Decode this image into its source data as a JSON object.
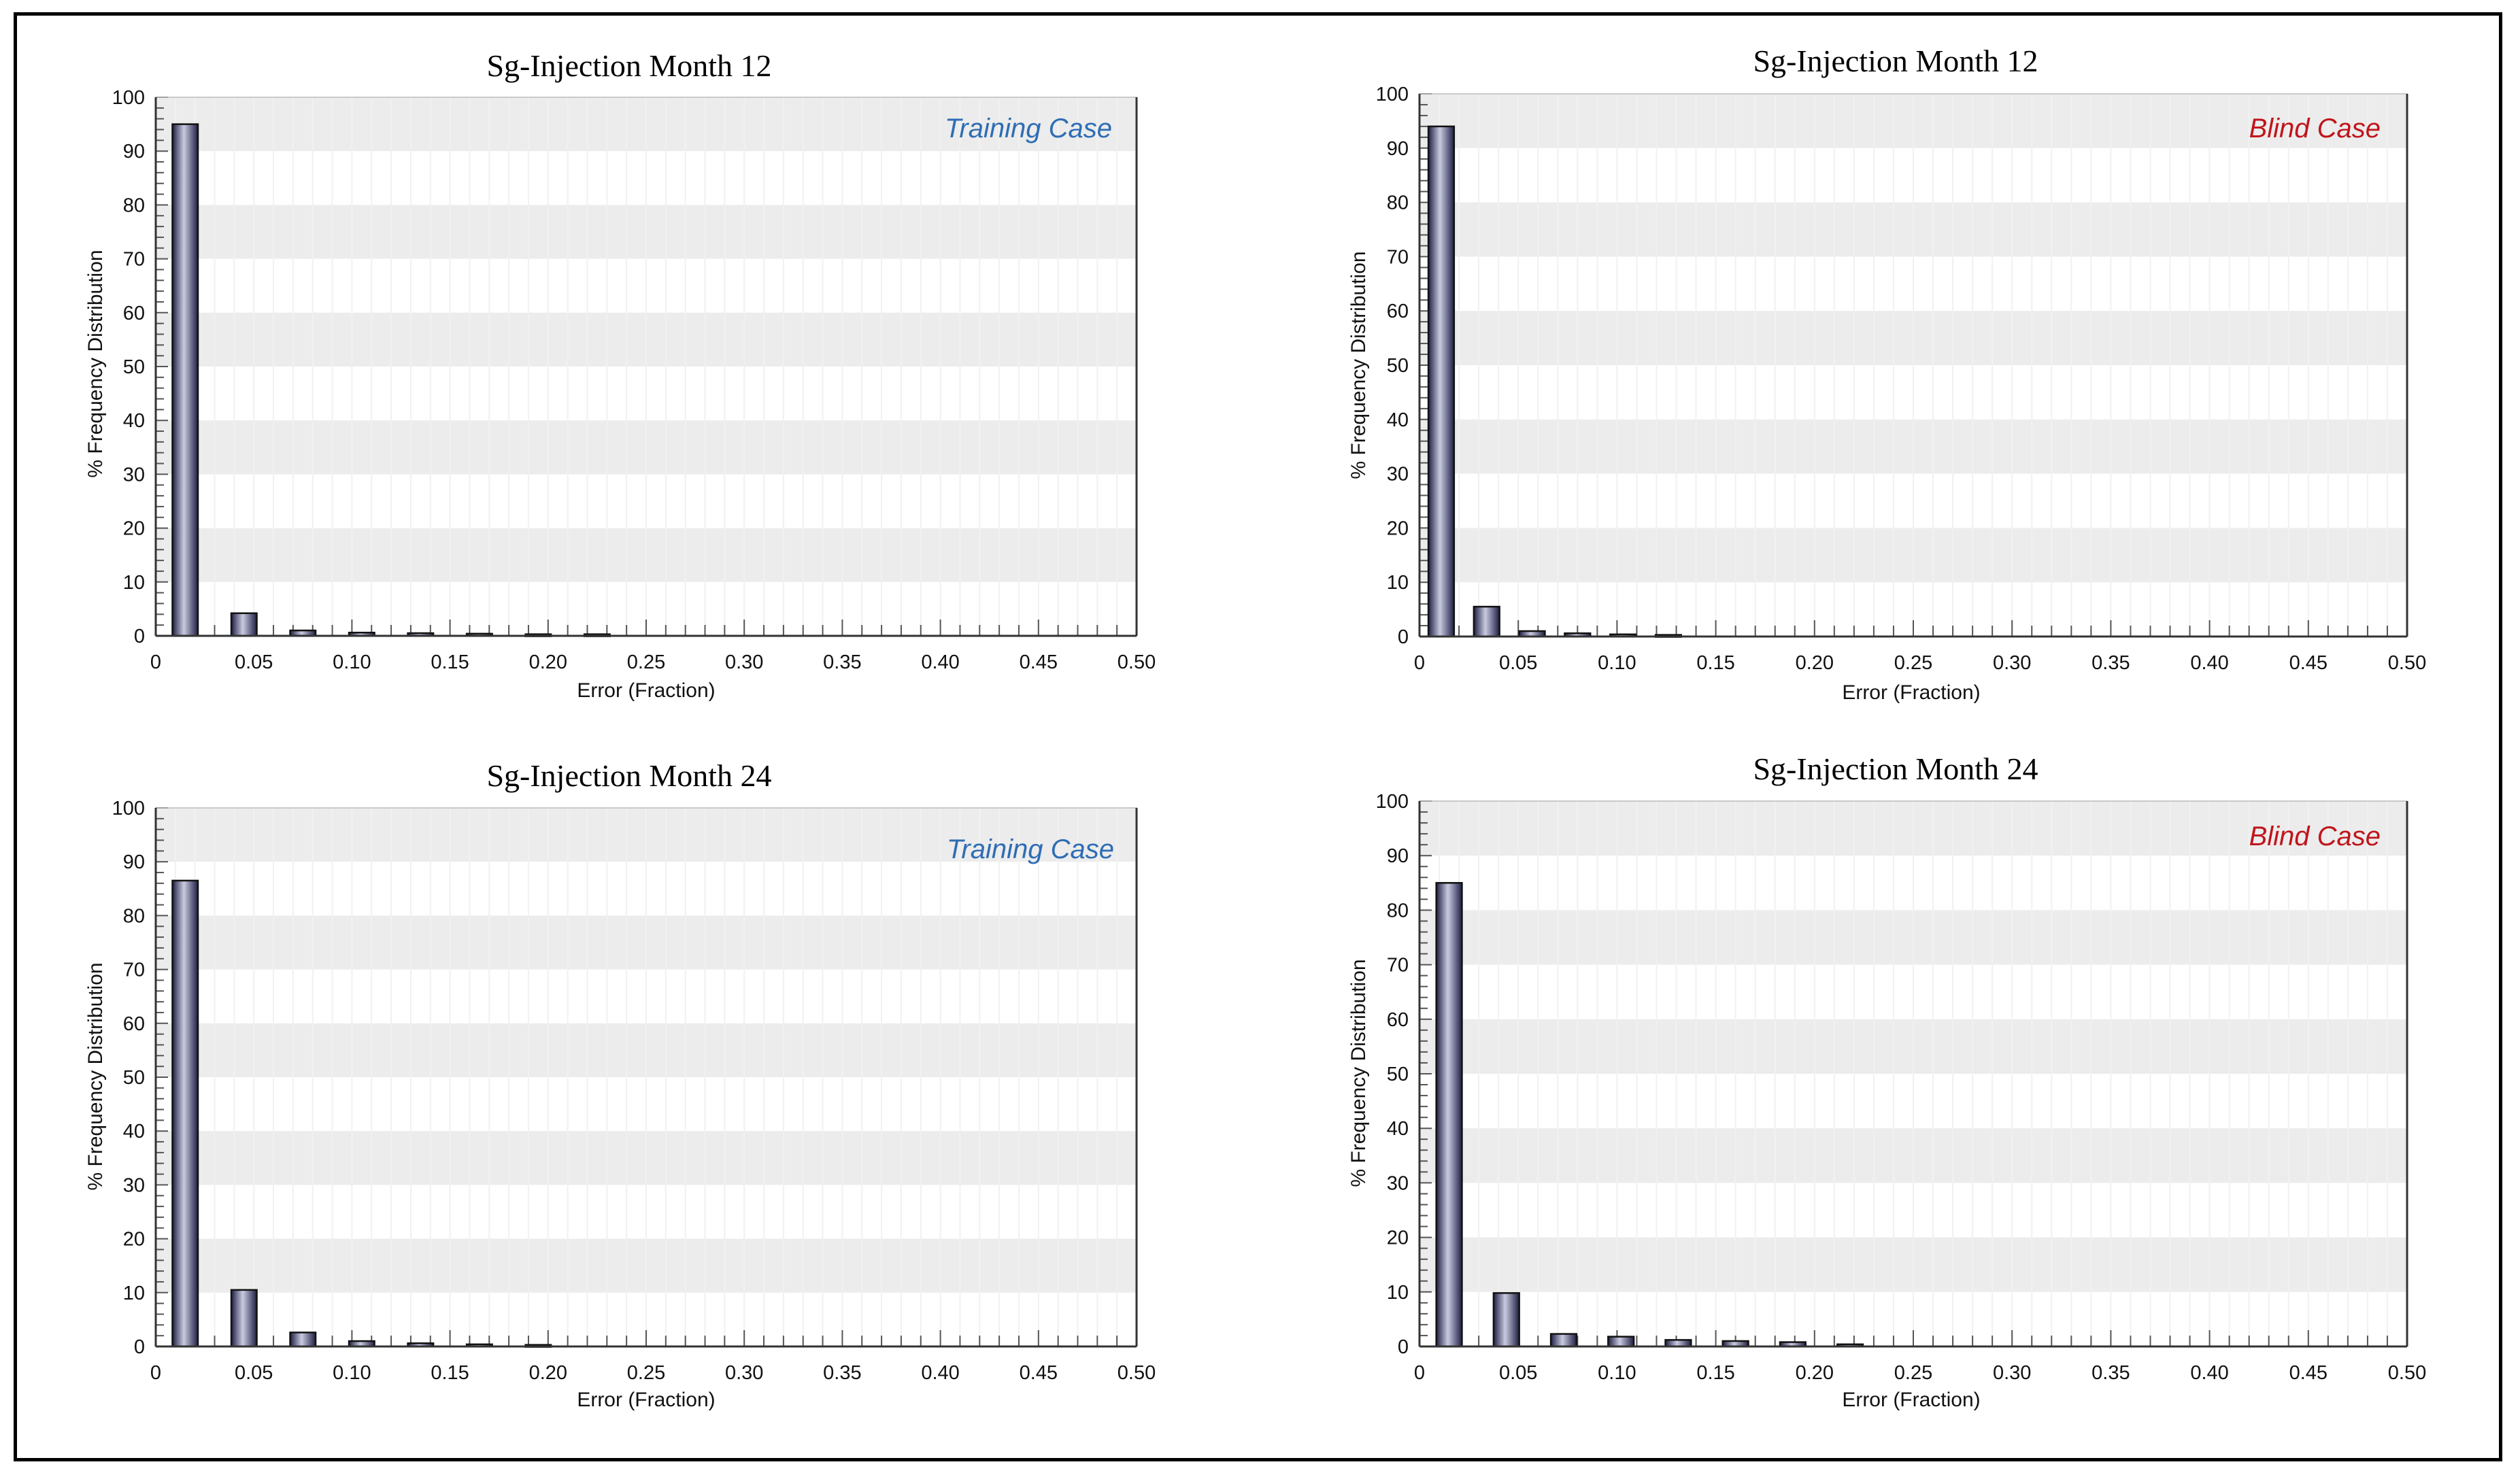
{
  "colors": {
    "training": "#2e6db4",
    "blind": "#c0151b",
    "bar_fill": "#2e2e5a",
    "bar_highlight": "#c9cbe0",
    "band": "#ececec"
  },
  "chart_data": [
    {
      "type": "bar",
      "title": "Sg-Injection Month 12",
      "annotation": "Training Case",
      "annotation_color": "training",
      "xlabel": "Error (Fraction)",
      "ylabel": "% Frequency Distribution",
      "xlim": [
        0,
        0.5
      ],
      "ylim": [
        0,
        100
      ],
      "x_ticks": [
        "0",
        "0.05",
        "0.10",
        "0.15",
        "0.20",
        "0.25",
        "0.30",
        "0.35",
        "0.40",
        "0.45",
        "0.50"
      ],
      "y_ticks": [
        "0",
        "10",
        "20",
        "30",
        "40",
        "50",
        "60",
        "70",
        "80",
        "90",
        "100"
      ],
      "x": [
        0.015,
        0.045,
        0.075,
        0.105,
        0.135,
        0.165,
        0.195,
        0.225
      ],
      "values": [
        95,
        4.2,
        1.0,
        0.6,
        0.5,
        0.4,
        0.3,
        0.3
      ]
    },
    {
      "type": "bar",
      "title": "Sg-Injection Month 12",
      "annotation": "Blind Case",
      "annotation_color": "blind",
      "xlabel": "Error (Fraction)",
      "ylabel": "% Frequency Distribution",
      "xlim": [
        0,
        0.5
      ],
      "ylim": [
        0,
        100
      ],
      "x_ticks": [
        "0",
        "0.05",
        "0.10",
        "0.15",
        "0.20",
        "0.25",
        "0.30",
        "0.35",
        "0.40",
        "0.45",
        "0.50"
      ],
      "y_ticks": [
        "0",
        "10",
        "20",
        "30",
        "40",
        "50",
        "60",
        "70",
        "80",
        "90",
        "100"
      ],
      "x": [
        0.011,
        0.034,
        0.057,
        0.08,
        0.103,
        0.126
      ],
      "values": [
        94,
        5.5,
        1.0,
        0.6,
        0.4,
        0.3
      ]
    },
    {
      "type": "bar",
      "title": "Sg-Injection Month 24",
      "annotation": "Training Case",
      "annotation_color": "training",
      "xlabel": "Error (Fraction)",
      "ylabel": "% Frequency Distribution",
      "xlim": [
        0,
        0.5
      ],
      "ylim": [
        0,
        100
      ],
      "x_ticks": [
        "0",
        "0.05",
        "0.10",
        "0.15",
        "0.20",
        "0.25",
        "0.30",
        "0.35",
        "0.40",
        "0.45",
        "0.50"
      ],
      "y_ticks": [
        "0",
        "10",
        "20",
        "30",
        "40",
        "50",
        "60",
        "70",
        "80",
        "90",
        "100"
      ],
      "x": [
        0.015,
        0.045,
        0.075,
        0.105,
        0.135,
        0.165,
        0.195
      ],
      "values": [
        86.5,
        10.5,
        2.6,
        1.0,
        0.6,
        0.4,
        0.3
      ]
    },
    {
      "type": "bar",
      "title": "Sg-Injection Month 24",
      "annotation": "Blind Case",
      "annotation_color": "blind",
      "xlabel": "Error (Fraction)",
      "ylabel": "% Frequency Distribution",
      "xlim": [
        0,
        0.5
      ],
      "ylim": [
        0,
        100
      ],
      "x_ticks": [
        "0",
        "0.05",
        "0.10",
        "0.15",
        "0.20",
        "0.25",
        "0.30",
        "0.35",
        "0.40",
        "0.45",
        "0.50"
      ],
      "y_ticks": [
        "0",
        "10",
        "20",
        "30",
        "40",
        "50",
        "60",
        "70",
        "80",
        "90",
        "100"
      ],
      "x": [
        0.015,
        0.044,
        0.073,
        0.102,
        0.131,
        0.16,
        0.189,
        0.218
      ],
      "values": [
        85,
        9.8,
        2.3,
        1.8,
        1.2,
        1.0,
        0.8,
        0.4
      ]
    }
  ]
}
